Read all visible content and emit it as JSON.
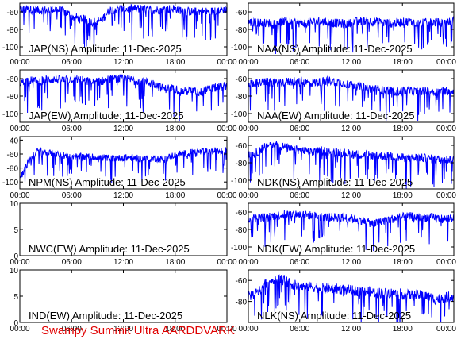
{
  "footer": "Swampy Summit Ultra AARDDVARK",
  "colors": {
    "signal": "#0000ff",
    "axes": "#000000",
    "footer": "#e00000"
  },
  "chart_data": [
    {
      "type": "line",
      "title": "JAP(NS) Amplitude: 11-Dec-2025",
      "ylim": [
        -110,
        -50
      ],
      "yticks": [
        -60,
        -80,
        -100
      ],
      "xticks": [
        "00:00",
        "06:00",
        "12:00",
        "18:00",
        "00:00"
      ],
      "series": [
        {
          "values": [
            -58,
            -57,
            -58,
            -58,
            -57,
            -60,
            -66,
            -68,
            -72,
            -70,
            -58,
            -56,
            -57,
            -56,
            -57,
            -58,
            -57,
            -56,
            -58,
            -60,
            -59,
            -60,
            -58,
            -57
          ]
        }
      ]
    },
    {
      "type": "line",
      "title": "NAA(NS) Amplitude: 11-Dec-2025",
      "ylim": [
        -110,
        -50
      ],
      "yticks": [
        -60,
        -80,
        -100
      ],
      "xticks": [
        "00:00",
        "06:00",
        "12:00",
        "18:00",
        "00:00"
      ],
      "series": [
        {
          "values": [
            -72,
            -72,
            -73,
            -72,
            -71,
            -72,
            -73,
            -72,
            -71,
            -72,
            -73,
            -74,
            -71,
            -70,
            -71,
            -72,
            -73,
            -72,
            -71,
            -73,
            -72,
            -72,
            -73,
            -70
          ]
        }
      ]
    },
    {
      "type": "line",
      "title": "JAP(EW) Amplitude: 11-Dec-2025",
      "ylim": [
        -110,
        -50
      ],
      "yticks": [
        -60,
        -80,
        -100
      ],
      "xticks": [
        "00:00",
        "06:00",
        "12:00",
        "18:00",
        "00:00"
      ],
      "series": [
        {
          "values": [
            -65,
            -62,
            -63,
            -61,
            -61,
            -62,
            -60,
            -62,
            -64,
            -63,
            -61,
            -60,
            -61,
            -62,
            -64,
            -66,
            -72,
            -70,
            -75,
            -74,
            -76,
            -72,
            -70,
            -68
          ]
        }
      ]
    },
    {
      "type": "line",
      "title": "NAA(EW) Amplitude: 11-Dec-2025",
      "ylim": [
        -110,
        -50
      ],
      "yticks": [
        -60,
        -80,
        -100
      ],
      "xticks": [
        "00:00",
        "06:00",
        "12:00",
        "18:00",
        "00:00"
      ],
      "series": [
        {
          "values": [
            -66,
            -65,
            -64,
            -65,
            -64,
            -63,
            -64,
            -65,
            -64,
            -62,
            -64,
            -66,
            -68,
            -70,
            -72,
            -73,
            -74,
            -75,
            -74,
            -75,
            -74,
            -75,
            -74,
            -74
          ]
        }
      ]
    },
    {
      "type": "line",
      "title": "NPM(NS) Amplitude: 11-Dec-2025",
      "ylim": [
        -110,
        -35
      ],
      "yticks": [
        -40,
        -60,
        -80,
        -100
      ],
      "xticks": [
        "00:00",
        "06:00",
        "12:00",
        "18:00",
        "00:00"
      ],
      "series": [
        {
          "values": [
            -95,
            -70,
            -55,
            -58,
            -60,
            -62,
            -63,
            -64,
            -64,
            -65,
            -66,
            -66,
            -65,
            -66,
            -67,
            -66,
            -68,
            -62,
            -60,
            -58,
            -57,
            -56,
            -56,
            -55
          ]
        }
      ]
    },
    {
      "type": "line",
      "title": "NDK(NS) Amplitude: 11-Dec-2025",
      "ylim": [
        -110,
        -50
      ],
      "yticks": [
        -60,
        -80,
        -100
      ],
      "xticks": [
        "00:00",
        "06:00",
        "12:00",
        "18:00",
        "00:00"
      ],
      "series": [
        {
          "values": [
            -72,
            -68,
            -60,
            -58,
            -62,
            -65,
            -66,
            -68,
            -66,
            -67,
            -68,
            -69,
            -70,
            -71,
            -72,
            -72,
            -73,
            -74,
            -75,
            -74,
            -75,
            -76,
            -76,
            -76
          ]
        }
      ]
    },
    {
      "type": "line",
      "title": "NWC(EW) Amplitude: 11-Dec-2025",
      "ylim": [
        0,
        10
      ],
      "yticks": [
        10,
        5,
        0
      ],
      "xticks": [
        "00:00",
        "06:00",
        "12:00",
        "18:00",
        "00:00"
      ],
      "series": []
    },
    {
      "type": "line",
      "title": "NDK(EW) Amplitude: 11-Dec-2025",
      "ylim": [
        -110,
        -50
      ],
      "yticks": [
        -60,
        -80,
        -100
      ],
      "xticks": [
        "00:00",
        "06:00",
        "12:00",
        "18:00",
        "00:00"
      ],
      "series": [
        {
          "values": [
            -68,
            -67,
            -66,
            -64,
            -63,
            -62,
            -63,
            -64,
            -65,
            -66,
            -66,
            -67,
            -68,
            -70,
            -74,
            -70,
            -68,
            -66,
            -65,
            -66,
            -66,
            -67,
            -68,
            -66
          ]
        }
      ]
    },
    {
      "type": "line",
      "title": "IND(EW) Amplitude: 11-Dec-2025",
      "ylim": [
        0,
        10
      ],
      "yticks": [
        10,
        5,
        0
      ],
      "xticks": [
        "00:00",
        "06:00",
        "12:00",
        "18:00",
        "00:00"
      ],
      "series": []
    },
    {
      "type": "line",
      "title": "NLK(NS) Amplitude: 11-Dec-2025",
      "ylim": [
        -100,
        -50
      ],
      "yticks": [
        -60,
        -80
      ],
      "xticks": [
        "00:00",
        "06:00",
        "12:00",
        "18:00",
        "00:00"
      ],
      "series": [
        {
          "values": [
            -75,
            -72,
            -62,
            -58,
            -60,
            -64,
            -66,
            -66,
            -67,
            -68,
            -68,
            -69,
            -70,
            -70,
            -71,
            -72,
            -72,
            -73,
            -74,
            -74,
            -75,
            -78,
            -76,
            -75
          ]
        }
      ]
    }
  ]
}
